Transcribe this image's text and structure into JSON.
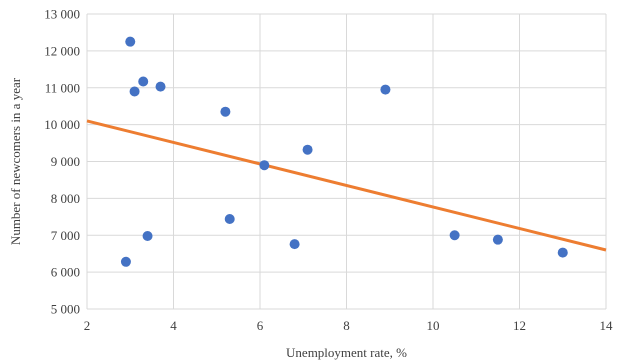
{
  "chart_data": {
    "type": "scatter",
    "xlabel": "Unemployment rate, %",
    "ylabel": "Number of newcomers in a year",
    "xlim": [
      2,
      14
    ],
    "ylim": [
      5000,
      13000
    ],
    "x_ticks": [
      2,
      4,
      6,
      8,
      10,
      12,
      14
    ],
    "y_ticks": [
      5000,
      6000,
      7000,
      8000,
      9000,
      10000,
      11000,
      12000,
      13000
    ],
    "x_tick_labels": [
      "2",
      "4",
      "6",
      "8",
      "10",
      "12",
      "14"
    ],
    "y_tick_labels": [
      "5 000",
      "6 000",
      "7 000",
      "8 000",
      "9 000",
      "10 000",
      "11 000",
      "12 000",
      "13 000"
    ],
    "grid": "vertical and horizontal",
    "series": [
      {
        "color": "#4472C4",
        "points": [
          {
            "x": 3.0,
            "y": 12250
          },
          {
            "x": 3.1,
            "y": 10900
          },
          {
            "x": 3.3,
            "y": 11170
          },
          {
            "x": 3.7,
            "y": 11030
          },
          {
            "x": 5.2,
            "y": 10350
          },
          {
            "x": 8.9,
            "y": 10950
          },
          {
            "x": 6.1,
            "y": 8900
          },
          {
            "x": 7.1,
            "y": 9320
          },
          {
            "x": 5.3,
            "y": 7440
          },
          {
            "x": 3.4,
            "y": 6980
          },
          {
            "x": 2.9,
            "y": 6280
          },
          {
            "x": 6.8,
            "y": 6760
          },
          {
            "x": 10.5,
            "y": 7000
          },
          {
            "x": 11.5,
            "y": 6880
          },
          {
            "x": 13.0,
            "y": 6530
          }
        ]
      }
    ],
    "trendline": {
      "type": "linear",
      "color": "#ED7D31",
      "x": [
        2,
        14
      ],
      "y": [
        10100,
        6600
      ]
    }
  }
}
